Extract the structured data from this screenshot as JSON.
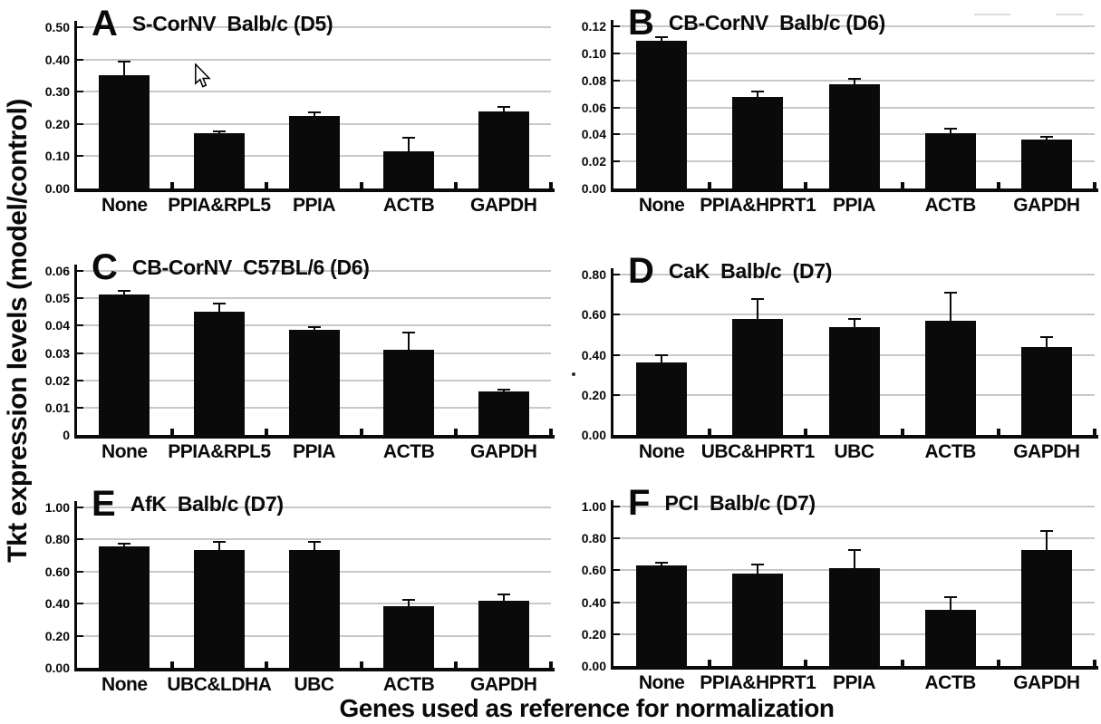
{
  "figure": {
    "background": "#ffffff",
    "text_color": "#0a0a0a",
    "bar_color": "#0a0a0a",
    "gridline_color": "#c8c8c8"
  },
  "chart_data": {
    "type": "bar",
    "layout": "2x3 panel grid",
    "ylabel": "Tkt expression levels (model/control)",
    "xlabel": "Genes used as reference for normalization",
    "grid": "horizontal",
    "legend": "none",
    "error_bars": "upper only",
    "panels": [
      {
        "panel": "A",
        "title": "S-CorNV  Balb/c (D5)",
        "categories": [
          "None",
          "PPIA&RPL5",
          "PPIA",
          "ACTB",
          "GAPDH"
        ],
        "values": [
          0.35,
          0.172,
          0.225,
          0.114,
          0.24
        ],
        "errors": [
          0.043,
          0.006,
          0.01,
          0.044,
          0.013
        ],
        "ylim": [
          0,
          0.5
        ],
        "ytick_values": [
          0,
          0.1,
          0.2,
          0.3,
          0.4,
          0.5
        ],
        "ytick_labels": [
          "0.00",
          "0.10",
          "0.20",
          "0.30",
          "0.40",
          "0.50"
        ]
      },
      {
        "panel": "B",
        "title": "CB-CorNV  Balb/c (D6)",
        "categories": [
          "None",
          "PPIA&HPRT1",
          "PPIA",
          "ACTB",
          "GAPDH"
        ],
        "values": [
          0.109,
          0.068,
          0.077,
          0.041,
          0.036
        ],
        "errors": [
          0.003,
          0.004,
          0.004,
          0.003,
          0.002
        ],
        "ylim": [
          0,
          0.12
        ],
        "ytick_values": [
          0,
          0.02,
          0.04,
          0.06,
          0.08,
          0.1,
          0.12
        ],
        "ytick_labels": [
          "0.00",
          "0.02",
          "0.04",
          "0.06",
          "0.08",
          "0.10",
          "0.12"
        ]
      },
      {
        "panel": "C",
        "title": "CB-CorNV  C57BL/6 (D6)",
        "categories": [
          "None",
          "PPIA&RPL5",
          "PPIA",
          "ACTB",
          "GAPDH"
        ],
        "values": [
          0.0515,
          0.045,
          0.0385,
          0.031,
          0.016
        ],
        "errors": [
          0.0013,
          0.003,
          0.0008,
          0.0065,
          0.0006
        ],
        "ylim": [
          0,
          0.06
        ],
        "ytick_values": [
          0,
          0.01,
          0.02,
          0.03,
          0.04,
          0.05,
          0.06
        ],
        "ytick_labels": [
          "0",
          "0.01",
          "0.02",
          "0.03",
          "0.04",
          "0.05",
          "0.06"
        ]
      },
      {
        "panel": "D",
        "title": "CaK  Balb/c  (D7)",
        "categories": [
          "None",
          "UBC&HPRT1",
          "UBC",
          "ACTB",
          "GAPDH"
        ],
        "values": [
          0.36,
          0.58,
          0.54,
          0.57,
          0.44
        ],
        "errors": [
          0.04,
          0.1,
          0.04,
          0.14,
          0.05
        ],
        "ylim": [
          0,
          0.8
        ],
        "ytick_values": [
          0,
          0.2,
          0.4,
          0.6,
          0.8
        ],
        "ytick_labels": [
          "0.00",
          "0.20",
          "0.40",
          "0.60",
          "0.80"
        ]
      },
      {
        "panel": "E",
        "title": "AfK  Balb/c (D7)",
        "categories": [
          "None",
          "UBC&LDHA",
          "UBC",
          "ACTB",
          "GAPDH"
        ],
        "values": [
          0.755,
          0.735,
          0.735,
          0.385,
          0.42
        ],
        "errors": [
          0.02,
          0.05,
          0.05,
          0.04,
          0.04
        ],
        "ylim": [
          0,
          1.0
        ],
        "ytick_values": [
          0,
          0.2,
          0.4,
          0.6,
          0.8,
          1.0
        ],
        "ytick_labels": [
          "0.00",
          "0.20",
          "0.40",
          "0.60",
          "0.80",
          "1.00"
        ]
      },
      {
        "panel": "F",
        "title": "PCI  Balb/c (D7)",
        "categories": [
          "None",
          "PPIA&HPRT1",
          "PPIA",
          "ACTB",
          "GAPDH"
        ],
        "values": [
          0.63,
          0.58,
          0.615,
          0.35,
          0.725
        ],
        "errors": [
          0.02,
          0.055,
          0.11,
          0.08,
          0.12
        ],
        "ylim": [
          0,
          1.0
        ],
        "ytick_values": [
          0,
          0.2,
          0.4,
          0.6,
          0.8,
          1.0
        ],
        "ytick_labels": [
          "0.00",
          "0.20",
          "0.40",
          "0.60",
          "0.80",
          "1.00"
        ]
      }
    ]
  }
}
